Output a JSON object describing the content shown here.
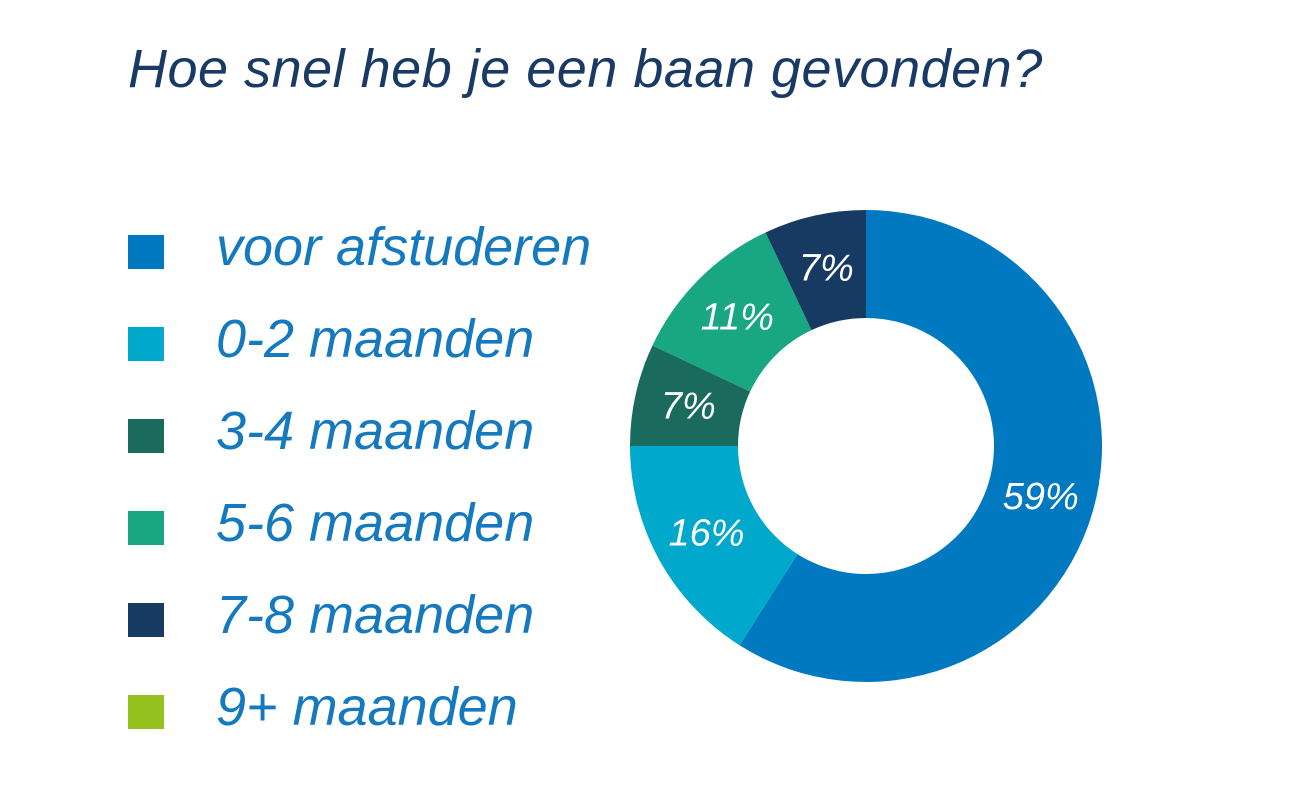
{
  "title": "Hoe snel heb je een baan gevonden?",
  "colors": {
    "background": "#ffffff",
    "title": "#1a3a66",
    "legend_text": "#1579bf",
    "hole": "#ffffff"
  },
  "chart_data": {
    "type": "pie",
    "variant": "donut",
    "title": "Hoe snel heb je een baan gevonden?",
    "legend_placement": "left",
    "categories": [
      "voor afstuderen",
      "0-2 maanden",
      "3-4 maanden",
      "5-6 maanden",
      "7-8 maanden",
      "9+ maanden"
    ],
    "values": [
      59,
      16,
      7,
      11,
      7,
      0
    ],
    "labels": [
      "59%",
      "16%",
      "7%",
      "11%",
      "7%",
      ""
    ],
    "colors": [
      "#0079c1",
      "#00a8cb",
      "#1a6b5e",
      "#18a683",
      "#173a63",
      "#95c11f"
    ]
  }
}
